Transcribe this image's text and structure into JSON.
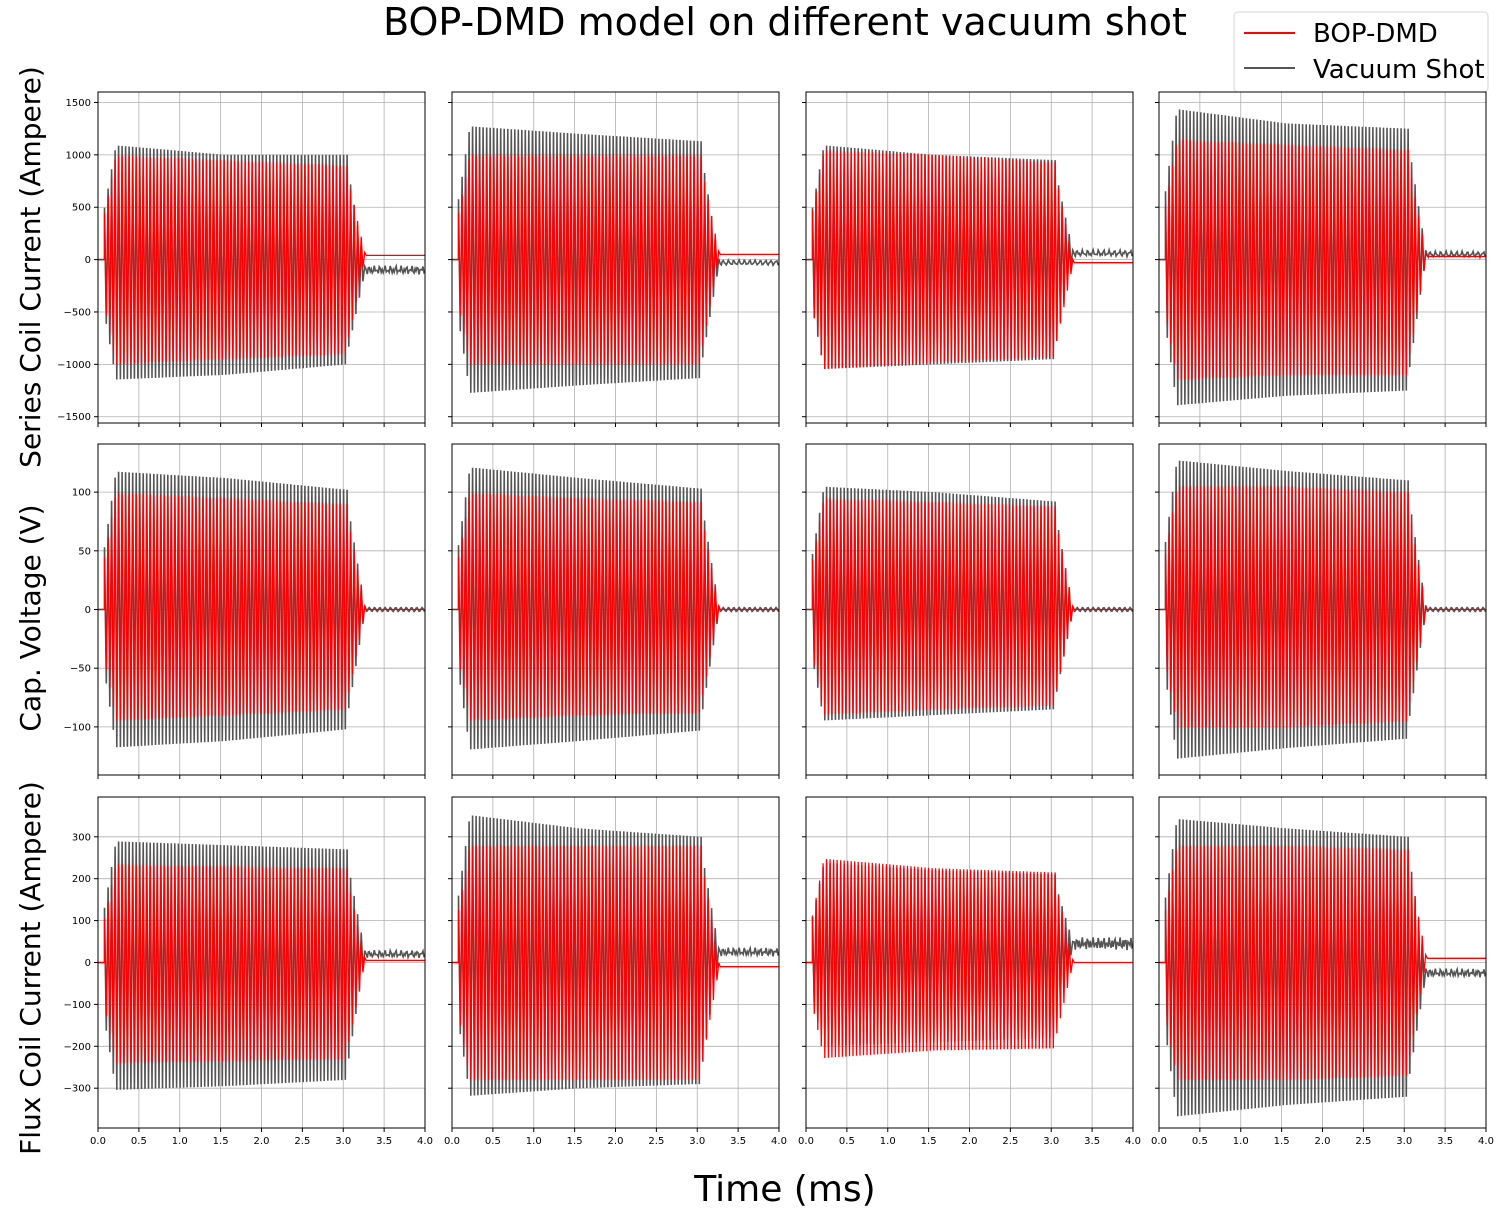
{
  "figure": {
    "title": "BOP-DMD model on different vacuum shot",
    "xlabel": "Time (ms)"
  },
  "legend": {
    "placement": "top-right",
    "entries": [
      {
        "label": "BOP-DMD",
        "color": "#ff0000"
      },
      {
        "label": "Vacuum Shot",
        "color": "#555555"
      }
    ]
  },
  "chart_data": {
    "type": "line",
    "layout": "3 rows x 4 columns, shared axes per row",
    "x": {
      "label": "Time (ms)",
      "lim": [
        0.0,
        4.0
      ],
      "ticks": [
        "0.0",
        "0.5",
        "1.0",
        "1.5",
        "2.0",
        "2.5",
        "3.0",
        "3.5",
        "4.0"
      ]
    },
    "grid": true,
    "series_styles": [
      {
        "name": "BOP-DMD",
        "color": "#ff0000"
      },
      {
        "name": "Vacuum Shot",
        "color": "#555555"
      }
    ],
    "rows": [
      {
        "ylabel": "Series Coil Current (Ampere)",
        "ylim": [
          -1560,
          1600
        ],
        "yticks": [
          -1500,
          -1000,
          -500,
          0,
          500,
          1000,
          1500
        ],
        "ytick_labels": [
          "−1500",
          "−1000",
          "−500",
          "0",
          "500",
          "1000",
          "1500"
        ],
        "panels": [
          {
            "vac_amp": [
              1100,
              1000,
              1000
            ],
            "vac_neg": [
              1150,
              1100,
              1000
            ],
            "dmd_amp": [
              1000,
              950,
              900
            ],
            "dmd_neg": [
              1000,
              950,
              900
            ],
            "end": 3.05,
            "dmd_tail": 40,
            "vac_tail": -100
          },
          {
            "vac_amp": [
              1280,
              1200,
              1130
            ],
            "vac_neg": [
              1280,
              1200,
              1130
            ],
            "dmd_amp": [
              1000,
              1000,
              1000
            ],
            "dmd_neg": [
              1000,
              1000,
              1000
            ],
            "end": 3.05,
            "dmd_tail": 50,
            "vac_tail": -30
          },
          {
            "vac_amp": [
              1100,
              1000,
              950
            ],
            "vac_neg": [
              1050,
              1000,
              950
            ],
            "dmd_amp": [
              1050,
              1000,
              930
            ],
            "dmd_neg": [
              1050,
              980,
              930
            ],
            "end": 3.05,
            "dmd_tail": -30,
            "vac_tail": 60
          },
          {
            "vac_amp": [
              1450,
              1300,
              1250
            ],
            "vac_neg": [
              1400,
              1300,
              1250
            ],
            "dmd_amp": [
              1150,
              1100,
              1050
            ],
            "dmd_neg": [
              1150,
              1100,
              1100
            ],
            "end": 3.05,
            "dmd_tail": 30,
            "vac_tail": 50
          }
        ]
      },
      {
        "ylabel": "Cap. Voltage (V)",
        "ylim": [
          -141,
          141
        ],
        "yticks": [
          -100,
          -50,
          0,
          50,
          100
        ],
        "ytick_labels": [
          "−100",
          "−50",
          "0",
          "50",
          "100"
        ],
        "panels": [
          {
            "vac_amp": [
              118,
              112,
              102
            ],
            "vac_neg": [
              118,
              112,
              102
            ],
            "dmd_amp": [
              100,
              95,
              90
            ],
            "dmd_neg": [
              95,
              90,
              85
            ],
            "end": 3.05,
            "dmd_tail": 0,
            "vac_tail": 0
          },
          {
            "vac_amp": [
              122,
              112,
              103
            ],
            "vac_neg": [
              120,
              112,
              103
            ],
            "dmd_amp": [
              100,
              95,
              92
            ],
            "dmd_neg": [
              95,
              90,
              88
            ],
            "end": 3.05,
            "dmd_tail": 0,
            "vac_tail": 0
          },
          {
            "vac_amp": [
              105,
              100,
              92
            ],
            "vac_neg": [
              95,
              90,
              85
            ],
            "dmd_amp": [
              95,
              92,
              88
            ],
            "dmd_neg": [
              90,
              85,
              82
            ],
            "end": 3.05,
            "dmd_tail": 0,
            "vac_tail": 0
          },
          {
            "vac_amp": [
              128,
              118,
              110
            ],
            "vac_neg": [
              128,
              118,
              110
            ],
            "dmd_amp": [
              105,
              105,
              100
            ],
            "dmd_neg": [
              100,
              100,
              95
            ],
            "end": 3.05,
            "dmd_tail": 0,
            "vac_tail": 0
          }
        ]
      },
      {
        "ylabel": "Flux Coil Current (Ampere)",
        "ylim": [
          -395,
          395
        ],
        "yticks": [
          -300,
          -200,
          -100,
          0,
          100,
          200,
          300
        ],
        "ytick_labels": [
          "−300",
          "−200",
          "−100",
          "0",
          "100",
          "200",
          "300"
        ],
        "panels": [
          {
            "vac_amp": [
              290,
              280,
              270
            ],
            "vac_neg": [
              305,
              295,
              280
            ],
            "dmd_amp": [
              235,
              230,
              225
            ],
            "dmd_neg": [
              240,
              235,
              230
            ],
            "end": 3.05,
            "dmd_tail": 5,
            "vac_tail": 20
          },
          {
            "vac_amp": [
              355,
              320,
              300
            ],
            "vac_neg": [
              320,
              300,
              290
            ],
            "dmd_amp": [
              280,
              280,
              280
            ],
            "dmd_neg": [
              280,
              280,
              280
            ],
            "end": 3.05,
            "dmd_tail": -10,
            "vac_tail": 25
          },
          {
            "vac_amp": [
              240,
              220,
              210
            ],
            "vac_neg": [
              200,
              190,
              180
            ],
            "dmd_amp": [
              250,
              225,
              215
            ],
            "dmd_neg": [
              230,
              210,
              205
            ],
            "end": 3.05,
            "dmd_tail": 0,
            "vac_tail": 45
          },
          {
            "vac_amp": [
              345,
              320,
              300
            ],
            "vac_neg": [
              370,
              340,
              320
            ],
            "dmd_amp": [
              280,
              280,
              270
            ],
            "dmd_neg": [
              280,
              280,
              270
            ],
            "end": 3.05,
            "dmd_tail": 10,
            "vac_tail": -25
          }
        ]
      }
    ]
  }
}
